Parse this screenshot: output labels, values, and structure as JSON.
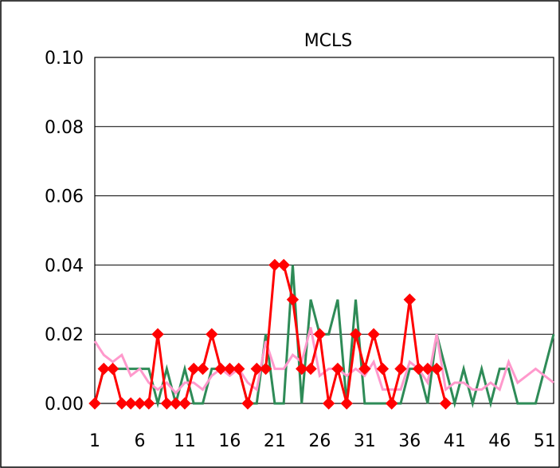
{
  "chart_data": {
    "type": "line",
    "title": "MCLS",
    "xlabel": "",
    "ylabel": "",
    "ylim": [
      0,
      0.1
    ],
    "xlim": [
      1,
      52
    ],
    "grid": "horizontal",
    "yticks": [
      "0.00",
      "0.02",
      "0.04",
      "0.06",
      "0.08",
      "0.10"
    ],
    "xticks": [
      "1",
      "6",
      "11",
      "16",
      "21",
      "26",
      "31",
      "36",
      "41",
      "46",
      "51"
    ],
    "series": [
      {
        "color": "#2e8b57",
        "marker": "none",
        "x": [
          1,
          2,
          3,
          4,
          5,
          6,
          7,
          8,
          9,
          10,
          11,
          12,
          13,
          14,
          15,
          16,
          17,
          18,
          19,
          20,
          21,
          22,
          23,
          24,
          25,
          26,
          27,
          28,
          29,
          30,
          31,
          32,
          33,
          34,
          35,
          36,
          37,
          38,
          39,
          40,
          41,
          42,
          43,
          44,
          45,
          46,
          47,
          48,
          49,
          50,
          51,
          52
        ],
        "values": [
          0,
          0.01,
          0.01,
          0.01,
          0.01,
          0.01,
          0.01,
          0,
          0.01,
          0,
          0.01,
          0,
          0,
          0.01,
          0.01,
          0.01,
          0.01,
          0,
          0,
          0.02,
          0,
          0,
          0.04,
          0,
          0.03,
          0.02,
          0.02,
          0.03,
          0,
          0.03,
          0,
          0,
          0,
          0,
          0,
          0.01,
          0.01,
          0,
          0.02,
          0.01,
          0,
          0.01,
          0,
          0.01,
          0,
          0.01,
          0.01,
          0,
          0,
          0,
          0.01,
          0.02
        ]
      },
      {
        "color": "#ff99cc",
        "marker": "none",
        "x": [
          1,
          2,
          3,
          4,
          5,
          6,
          7,
          8,
          9,
          10,
          11,
          12,
          13,
          14,
          15,
          16,
          17,
          18,
          19,
          20,
          21,
          22,
          23,
          24,
          25,
          26,
          27,
          28,
          29,
          30,
          31,
          32,
          33,
          34,
          35,
          36,
          37,
          38,
          39,
          40,
          41,
          42,
          43,
          44,
          45,
          46,
          47,
          48,
          49,
          50,
          51,
          52
        ],
        "values": [
          0.018,
          0.014,
          0.012,
          0.014,
          0.008,
          0.01,
          0.006,
          0.004,
          0.006,
          0.003,
          0.006,
          0.006,
          0.004,
          0.008,
          0.01,
          0.008,
          0.01,
          0.006,
          0.004,
          0.018,
          0.01,
          0.01,
          0.014,
          0.012,
          0.022,
          0.008,
          0.01,
          0.01,
          0.008,
          0.01,
          0.008,
          0.012,
          0.004,
          0.004,
          0.004,
          0.012,
          0.01,
          0.006,
          0.02,
          0.004,
          0.006,
          0.006,
          0.004,
          0.004,
          0.006,
          0.004,
          0.012,
          0.006,
          0.008,
          0.01,
          0.008,
          0.006
        ]
      },
      {
        "color": "#ff0000",
        "marker": "diamond",
        "x": [
          1,
          2,
          3,
          4,
          5,
          6,
          7,
          8,
          9,
          10,
          11,
          12,
          13,
          14,
          15,
          16,
          17,
          18,
          19,
          20,
          21,
          22,
          23,
          24,
          25,
          26,
          27,
          28,
          29,
          30,
          31,
          32,
          33,
          34,
          35,
          36,
          37,
          38,
          39,
          40
        ],
        "values": [
          0,
          0.01,
          0.01,
          0,
          0,
          0,
          0,
          0.02,
          0,
          0,
          0,
          0.01,
          0.01,
          0.02,
          0.01,
          0.01,
          0.01,
          0,
          0.01,
          0.01,
          0.04,
          0.04,
          0.03,
          0.01,
          0.01,
          0.02,
          0,
          0.01,
          0,
          0.02,
          0.01,
          0.02,
          0.01,
          0,
          0.01,
          0.03,
          0.01,
          0.01,
          0.01,
          0
        ]
      }
    ]
  }
}
